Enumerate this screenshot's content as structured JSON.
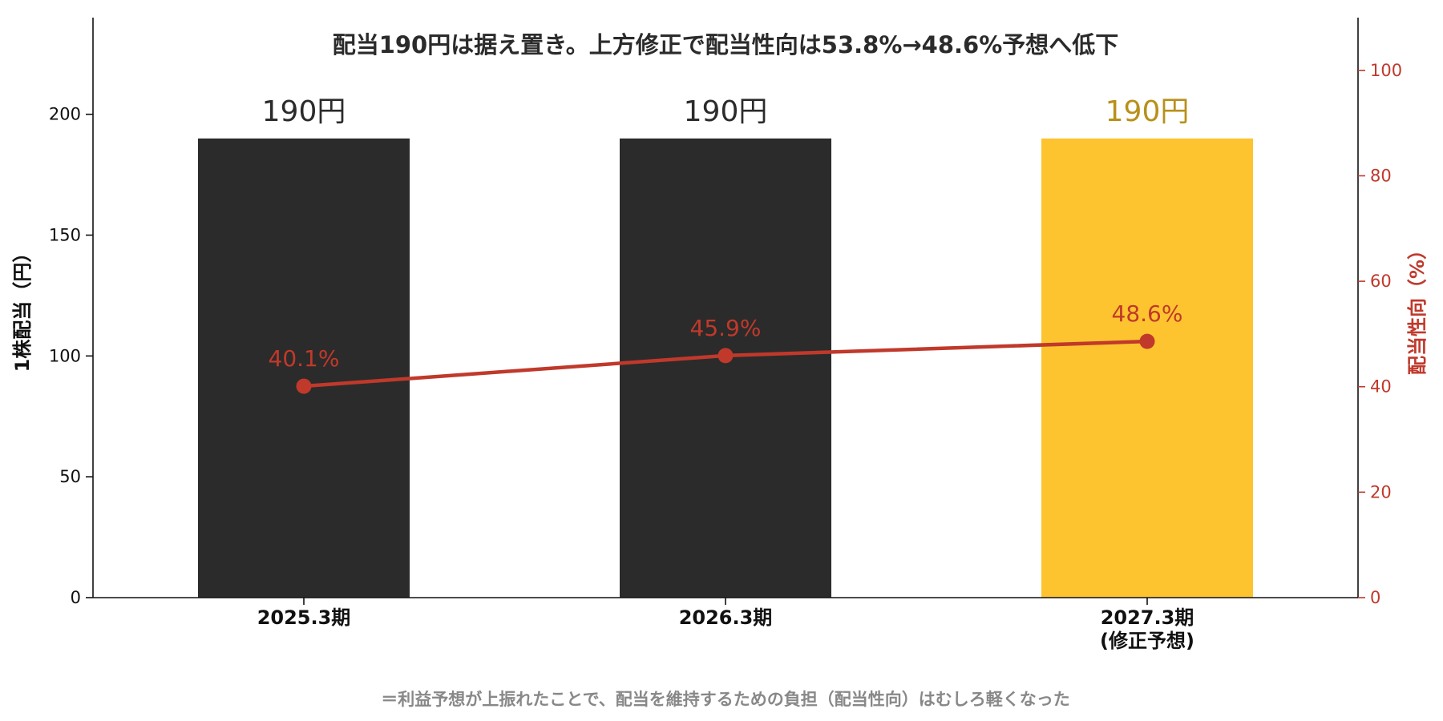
{
  "chart_data": {
    "type": "bar",
    "title": "配当190円は据え置き。上方修正で配当性向は53.8%→48.6%予想へ低下",
    "categories": [
      "2025.3期",
      "2026.3期",
      "2027.3期\n(修正予想)"
    ],
    "series": [
      {
        "type": "bar",
        "axis": "left",
        "values": [
          190,
          190,
          190
        ],
        "labels": [
          "190円",
          "190円",
          "190円"
        ],
        "colors": [
          "#2b2b2b",
          "#2b2b2b",
          "#fdc42f"
        ],
        "label_colors": [
          "#2b2b2b",
          "#2b2b2b",
          "#b8901a"
        ]
      },
      {
        "type": "line",
        "axis": "right",
        "values": [
          40.1,
          45.9,
          48.6
        ],
        "labels": [
          "40.1%",
          "45.9%",
          "48.6%"
        ],
        "color": "#c0392b"
      }
    ],
    "ylabel": "1株配当（円）",
    "ylabel_right": "配当性向（%）",
    "ylim": [
      0,
      240
    ],
    "ylim_right": [
      0,
      110
    ],
    "yticks": [
      0,
      50,
      100,
      150,
      200
    ],
    "yticks_right": [
      0,
      20,
      40,
      60,
      80,
      100
    ],
    "grid": false,
    "legend": "none",
    "colors": {
      "axis": "#111111",
      "right_axis": "#c0392b"
    }
  },
  "footnote": "＝利益予想が上振れたことで、配当を維持するための負担（配当性向）はむしろ軽くなった"
}
